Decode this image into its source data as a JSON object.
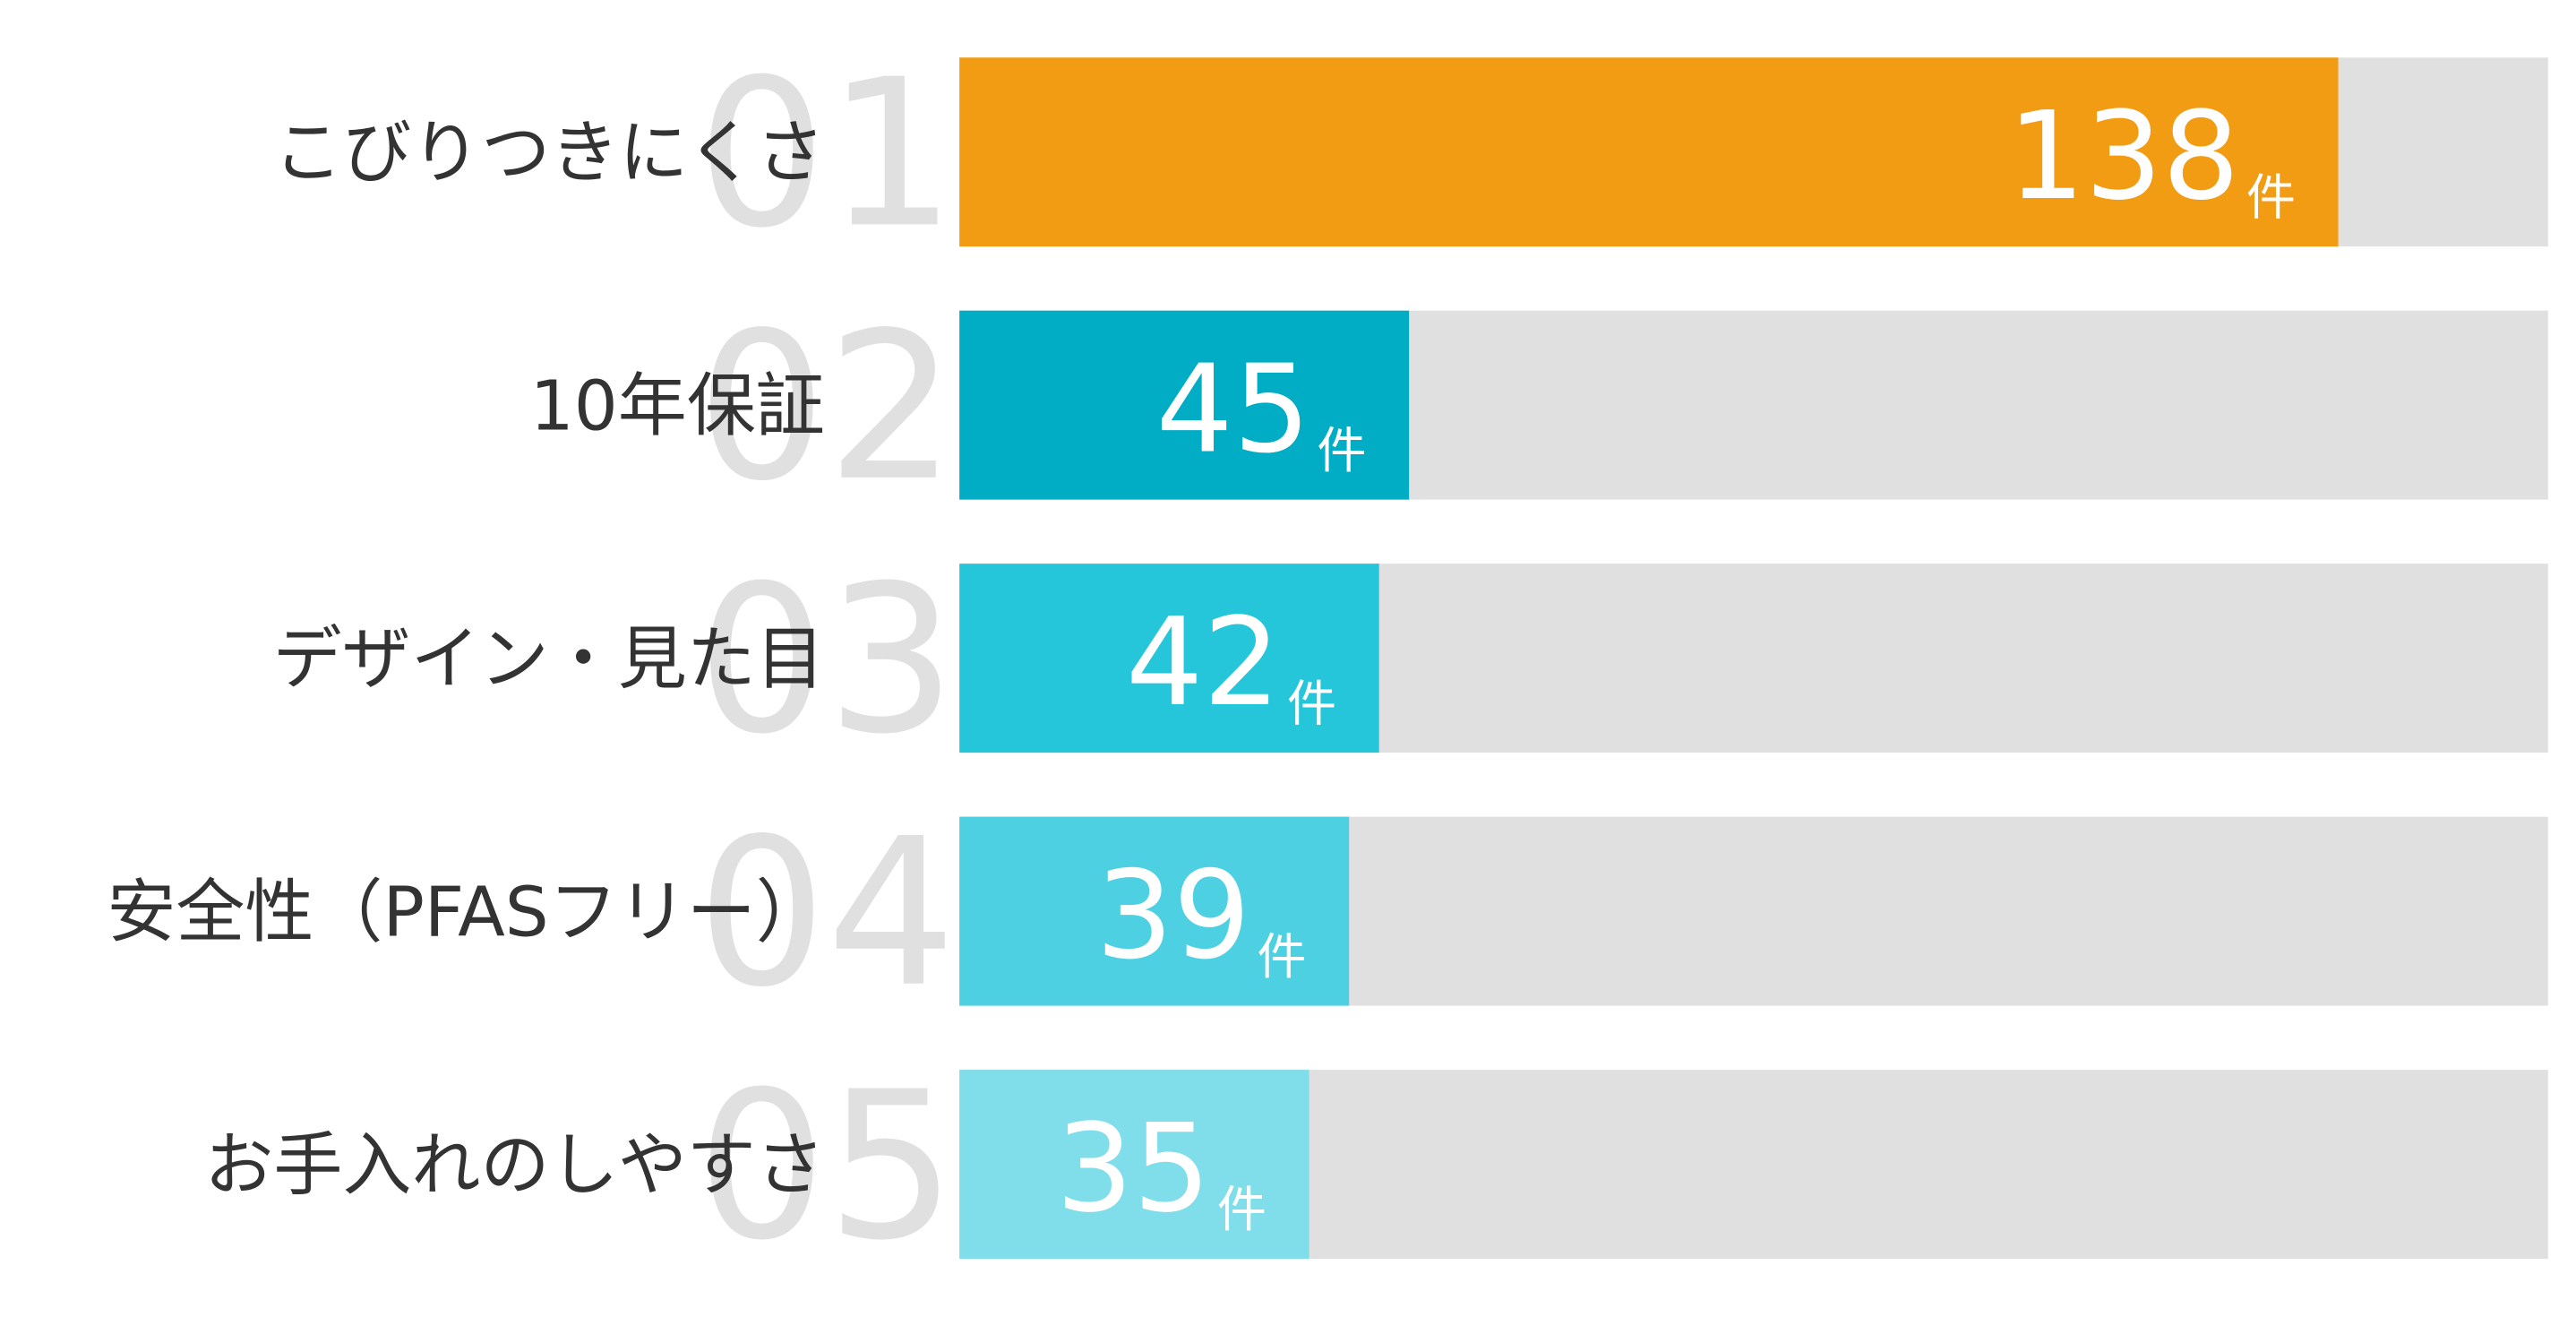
{
  "chart_data": {
    "type": "bar",
    "orientation": "horizontal",
    "categories": [
      "こびりつきにくさ",
      "10年保証",
      "デザイン・見た目",
      "安全性（PFASフリー）",
      "お手入れのしやすさ"
    ],
    "ranks": [
      "01",
      "02",
      "03",
      "04",
      "05"
    ],
    "values": [
      138,
      45,
      42,
      39,
      35
    ],
    "unit": "件",
    "colors": [
      "#f29c14",
      "#00adc4",
      "#26c6da",
      "#4dd0e1",
      "#80deea"
    ],
    "track_color": "#e0e0e0",
    "xlim": [
      0,
      159
    ]
  }
}
